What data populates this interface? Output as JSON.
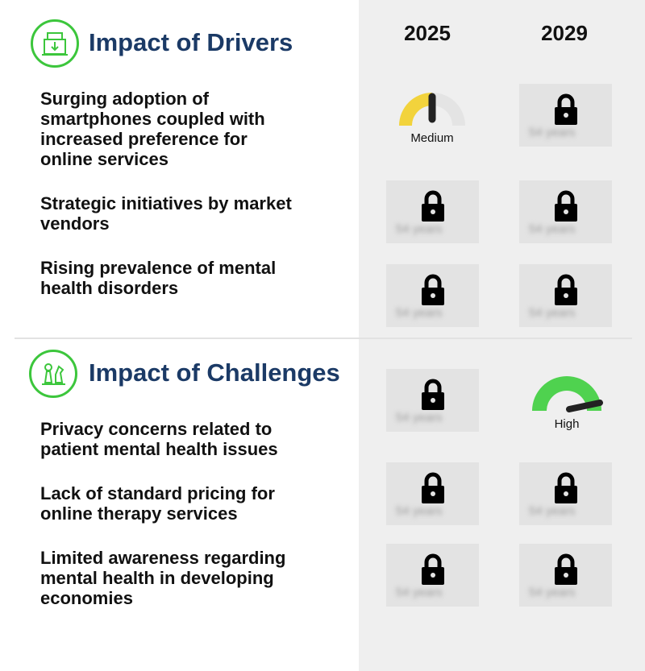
{
  "years": [
    "2025",
    "2029"
  ],
  "drivers": {
    "title": "Impact of Drivers",
    "icon": "factory-icon",
    "items": [
      "Surging adoption of smartphones coupled with increased preference for online services",
      "Strategic initiatives by market vendors",
      "Rising prevalence of mental health disorders"
    ],
    "gauge_2025": {
      "label": "Medium",
      "level": 0.5,
      "color": "#f2d33c"
    }
  },
  "challenges": {
    "title": "Impact of Challenges",
    "icon": "chess-icon",
    "items": [
      "Privacy concerns related to patient mental health issues",
      "Lack of standard pricing for online therapy services",
      "Limited awareness regarding mental health in developing economies"
    ],
    "gauge_2029": {
      "label": "High",
      "level": 0.9,
      "color": "#4fd24f"
    }
  },
  "locked_text": "54 years",
  "colors": {
    "accent_green": "#3cc63c",
    "title_blue": "#1b3a66",
    "panel_gray": "#efefef"
  }
}
